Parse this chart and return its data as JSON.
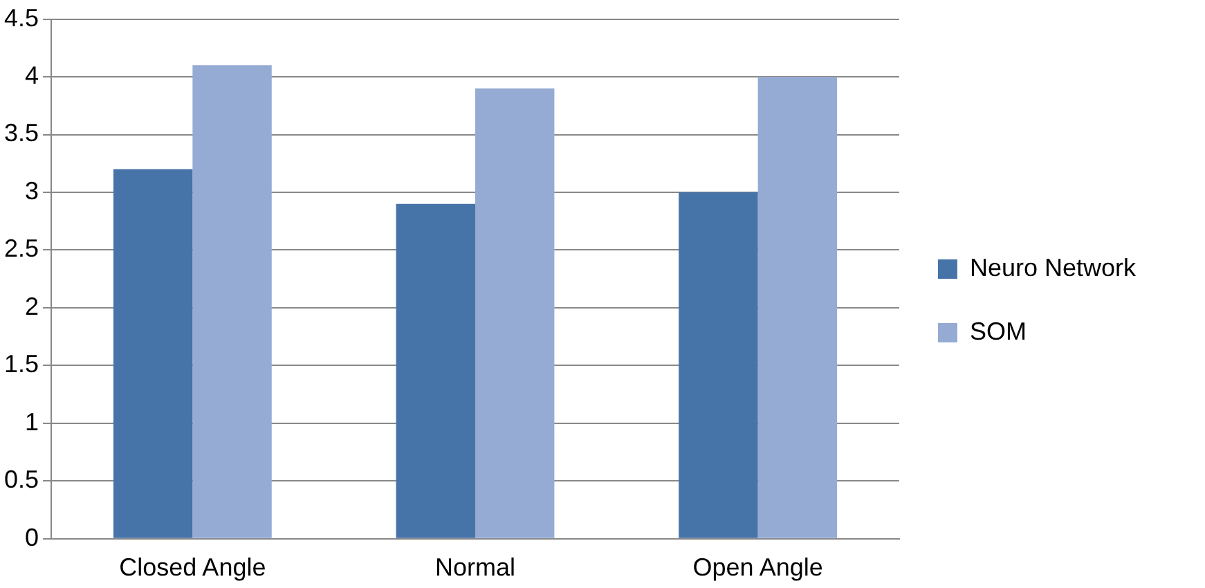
{
  "chart_data": {
    "type": "bar",
    "categories": [
      "Closed Angle",
      "Normal",
      "Open Angle"
    ],
    "series": [
      {
        "name": "Neuro Network",
        "color": "#4673a8",
        "values": [
          3.2,
          2.9,
          3.0
        ]
      },
      {
        "name": "SOM",
        "color": "#95abd4",
        "values": [
          4.1,
          3.9,
          4.0
        ]
      }
    ],
    "ylim": [
      0,
      4.5
    ],
    "yticks": [
      0,
      0.5,
      1,
      1.5,
      2,
      2.5,
      3,
      3.5,
      4,
      4.5
    ],
    "grid": "y",
    "legend": "right"
  }
}
